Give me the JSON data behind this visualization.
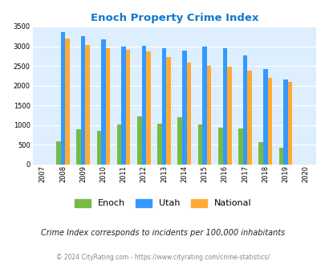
{
  "title": "Enoch Property Crime Index",
  "years": [
    2007,
    2008,
    2009,
    2010,
    2011,
    2012,
    2013,
    2014,
    2015,
    2016,
    2017,
    2018,
    2019,
    2020
  ],
  "enoch": [
    null,
    590,
    880,
    840,
    1010,
    1210,
    1030,
    1200,
    1020,
    930,
    900,
    560,
    430,
    null
  ],
  "utah": [
    null,
    3350,
    3250,
    3170,
    2980,
    3010,
    2950,
    2880,
    2990,
    2950,
    2770,
    2420,
    2150,
    null
  ],
  "national": [
    null,
    3200,
    3040,
    2950,
    2910,
    2870,
    2720,
    2590,
    2500,
    2470,
    2370,
    2200,
    2100,
    null
  ],
  "enoch_color": "#77bb44",
  "utah_color": "#3399ff",
  "national_color": "#ffaa33",
  "bg_color": "#ddeeff",
  "ylim": [
    0,
    3500
  ],
  "yticks": [
    0,
    500,
    1000,
    1500,
    2000,
    2500,
    3000,
    3500
  ],
  "title_color": "#1177cc",
  "footer_text": "Crime Index corresponds to incidents per 100,000 inhabitants",
  "copyright_text": "© 2024 CityRating.com - https://www.cityrating.com/crime-statistics/",
  "legend_labels": [
    "Enoch",
    "Utah",
    "National"
  ]
}
